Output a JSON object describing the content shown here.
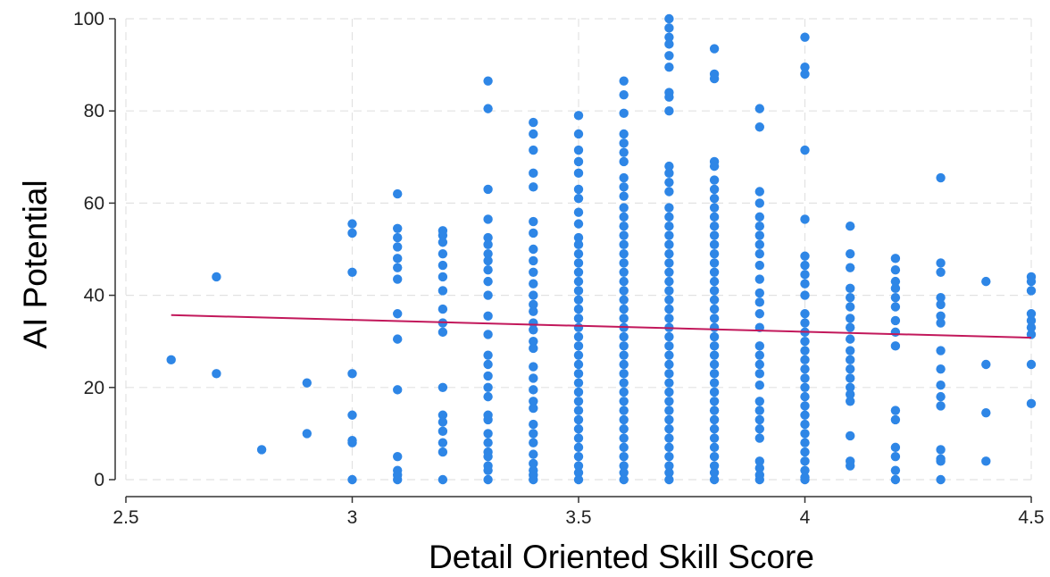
{
  "chart_data": {
    "type": "scatter",
    "title": "",
    "xlabel": "Detail Oriented Skill Score",
    "ylabel": "AI Potential",
    "xlim": [
      2.5,
      4.5
    ],
    "ylim": [
      0,
      100
    ],
    "xticks": [
      "2.5",
      "3",
      "3.5",
      "4",
      "4.5"
    ],
    "yticks": [
      "0",
      "20",
      "40",
      "60",
      "80",
      "100"
    ],
    "grid": true,
    "colors": {
      "points": "#2e86e6",
      "fit_line": "#c2185b",
      "grid": "#e2e2e2",
      "axis": "#333333"
    },
    "points": [
      [
        2.6,
        26
      ],
      [
        2.7,
        44
      ],
      [
        2.7,
        23
      ],
      [
        2.8,
        6.5
      ],
      [
        2.9,
        21
      ],
      [
        2.9,
        10
      ],
      [
        3.0,
        55.5
      ],
      [
        3.0,
        53.5
      ],
      [
        3.0,
        45
      ],
      [
        3.0,
        23
      ],
      [
        3.0,
        14
      ],
      [
        3.0,
        8.5
      ],
      [
        3.0,
        8
      ],
      [
        3.0,
        0
      ],
      [
        3.1,
        62
      ],
      [
        3.1,
        54.5
      ],
      [
        3.1,
        52.5
      ],
      [
        3.1,
        50.5
      ],
      [
        3.1,
        48
      ],
      [
        3.1,
        46
      ],
      [
        3.1,
        43.5
      ],
      [
        3.1,
        36
      ],
      [
        3.1,
        30.5
      ],
      [
        3.1,
        19.5
      ],
      [
        3.1,
        5
      ],
      [
        3.1,
        2
      ],
      [
        3.1,
        1
      ],
      [
        3.1,
        0
      ],
      [
        3.2,
        54
      ],
      [
        3.2,
        53
      ],
      [
        3.2,
        51.5
      ],
      [
        3.2,
        49
      ],
      [
        3.2,
        46.5
      ],
      [
        3.2,
        44
      ],
      [
        3.2,
        41
      ],
      [
        3.2,
        37
      ],
      [
        3.2,
        34
      ],
      [
        3.2,
        32
      ],
      [
        3.2,
        20
      ],
      [
        3.2,
        14
      ],
      [
        3.2,
        12.5
      ],
      [
        3.2,
        10.5
      ],
      [
        3.2,
        8
      ],
      [
        3.2,
        6
      ],
      [
        3.2,
        0
      ],
      [
        3.3,
        86.5
      ],
      [
        3.3,
        80.5
      ],
      [
        3.3,
        63
      ],
      [
        3.3,
        56.5
      ],
      [
        3.3,
        52.5
      ],
      [
        3.3,
        51
      ],
      [
        3.3,
        49
      ],
      [
        3.3,
        47.5
      ],
      [
        3.3,
        45.5
      ],
      [
        3.3,
        43
      ],
      [
        3.3,
        40
      ],
      [
        3.3,
        35.5
      ],
      [
        3.3,
        31.5
      ],
      [
        3.3,
        27
      ],
      [
        3.3,
        25
      ],
      [
        3.3,
        22.5
      ],
      [
        3.3,
        20
      ],
      [
        3.3,
        18
      ],
      [
        3.3,
        14
      ],
      [
        3.3,
        13
      ],
      [
        3.3,
        10
      ],
      [
        3.3,
        8
      ],
      [
        3.3,
        6
      ],
      [
        3.3,
        5
      ],
      [
        3.3,
        3
      ],
      [
        3.3,
        2
      ],
      [
        3.3,
        0
      ],
      [
        3.4,
        77.5
      ],
      [
        3.4,
        75
      ],
      [
        3.4,
        71.5
      ],
      [
        3.4,
        66.5
      ],
      [
        3.4,
        63.5
      ],
      [
        3.4,
        56
      ],
      [
        3.4,
        53.5
      ],
      [
        3.4,
        50
      ],
      [
        3.4,
        47.5
      ],
      [
        3.4,
        45
      ],
      [
        3.4,
        42.5
      ],
      [
        3.4,
        40
      ],
      [
        3.4,
        38
      ],
      [
        3.4,
        36.5
      ],
      [
        3.4,
        34
      ],
      [
        3.4,
        32.5
      ],
      [
        3.4,
        30
      ],
      [
        3.4,
        28.5
      ],
      [
        3.4,
        24.5
      ],
      [
        3.4,
        22
      ],
      [
        3.4,
        19.5
      ],
      [
        3.4,
        17
      ],
      [
        3.4,
        15.5
      ],
      [
        3.4,
        12
      ],
      [
        3.4,
        10
      ],
      [
        3.4,
        8
      ],
      [
        3.4,
        5.5
      ],
      [
        3.4,
        3.5
      ],
      [
        3.4,
        2
      ],
      [
        3.4,
        1
      ],
      [
        3.4,
        0
      ],
      [
        3.5,
        79
      ],
      [
        3.5,
        75
      ],
      [
        3.5,
        71.5
      ],
      [
        3.5,
        69
      ],
      [
        3.5,
        66.5
      ],
      [
        3.5,
        63
      ],
      [
        3.5,
        61
      ],
      [
        3.5,
        58
      ],
      [
        3.5,
        55.5
      ],
      [
        3.5,
        52.5
      ],
      [
        3.5,
        51
      ],
      [
        3.5,
        49
      ],
      [
        3.5,
        47
      ],
      [
        3.5,
        45
      ],
      [
        3.5,
        43
      ],
      [
        3.5,
        41
      ],
      [
        3.5,
        39
      ],
      [
        3.5,
        37
      ],
      [
        3.5,
        35
      ],
      [
        3.5,
        33
      ],
      [
        3.5,
        31
      ],
      [
        3.5,
        29
      ],
      [
        3.5,
        27
      ],
      [
        3.5,
        25
      ],
      [
        3.5,
        23
      ],
      [
        3.5,
        21
      ],
      [
        3.5,
        19
      ],
      [
        3.5,
        17
      ],
      [
        3.5,
        15
      ],
      [
        3.5,
        13
      ],
      [
        3.5,
        11
      ],
      [
        3.5,
        9
      ],
      [
        3.5,
        7
      ],
      [
        3.5,
        5
      ],
      [
        3.5,
        3
      ],
      [
        3.5,
        1.5
      ],
      [
        3.5,
        0
      ],
      [
        3.6,
        86.5
      ],
      [
        3.6,
        83.5
      ],
      [
        3.6,
        79.5
      ],
      [
        3.6,
        75
      ],
      [
        3.6,
        73
      ],
      [
        3.6,
        71
      ],
      [
        3.6,
        69
      ],
      [
        3.6,
        65.5
      ],
      [
        3.6,
        63.5
      ],
      [
        3.6,
        61.5
      ],
      [
        3.6,
        59
      ],
      [
        3.6,
        57
      ],
      [
        3.6,
        55
      ],
      [
        3.6,
        53
      ],
      [
        3.6,
        51
      ],
      [
        3.6,
        49
      ],
      [
        3.6,
        47
      ],
      [
        3.6,
        45
      ],
      [
        3.6,
        43
      ],
      [
        3.6,
        41
      ],
      [
        3.6,
        39
      ],
      [
        3.6,
        37
      ],
      [
        3.6,
        35
      ],
      [
        3.6,
        33
      ],
      [
        3.6,
        31
      ],
      [
        3.6,
        29
      ],
      [
        3.6,
        27
      ],
      [
        3.6,
        25
      ],
      [
        3.6,
        23
      ],
      [
        3.6,
        21
      ],
      [
        3.6,
        19
      ],
      [
        3.6,
        17
      ],
      [
        3.6,
        15
      ],
      [
        3.6,
        13
      ],
      [
        3.6,
        11
      ],
      [
        3.6,
        9
      ],
      [
        3.6,
        7
      ],
      [
        3.6,
        5
      ],
      [
        3.6,
        3
      ],
      [
        3.6,
        1.5
      ],
      [
        3.6,
        0
      ],
      [
        3.7,
        100
      ],
      [
        3.7,
        98
      ],
      [
        3.7,
        96
      ],
      [
        3.7,
        94.5
      ],
      [
        3.7,
        92
      ],
      [
        3.7,
        89.5
      ],
      [
        3.7,
        84
      ],
      [
        3.7,
        83
      ],
      [
        3.7,
        80
      ],
      [
        3.7,
        68
      ],
      [
        3.7,
        66.5
      ],
      [
        3.7,
        64.5
      ],
      [
        3.7,
        62.5
      ],
      [
        3.7,
        59
      ],
      [
        3.7,
        57
      ],
      [
        3.7,
        55
      ],
      [
        3.7,
        53
      ],
      [
        3.7,
        51
      ],
      [
        3.7,
        49
      ],
      [
        3.7,
        47
      ],
      [
        3.7,
        45
      ],
      [
        3.7,
        43
      ],
      [
        3.7,
        41
      ],
      [
        3.7,
        39
      ],
      [
        3.7,
        37
      ],
      [
        3.7,
        35
      ],
      [
        3.7,
        33
      ],
      [
        3.7,
        31
      ],
      [
        3.7,
        29
      ],
      [
        3.7,
        27
      ],
      [
        3.7,
        25
      ],
      [
        3.7,
        23
      ],
      [
        3.7,
        21
      ],
      [
        3.7,
        19
      ],
      [
        3.7,
        17
      ],
      [
        3.7,
        15
      ],
      [
        3.7,
        13
      ],
      [
        3.7,
        11
      ],
      [
        3.7,
        9
      ],
      [
        3.7,
        7
      ],
      [
        3.7,
        5
      ],
      [
        3.7,
        3
      ],
      [
        3.7,
        1.5
      ],
      [
        3.7,
        0
      ],
      [
        3.8,
        93.5
      ],
      [
        3.8,
        88
      ],
      [
        3.8,
        87
      ],
      [
        3.8,
        69
      ],
      [
        3.8,
        68
      ],
      [
        3.8,
        65
      ],
      [
        3.8,
        63
      ],
      [
        3.8,
        61
      ],
      [
        3.8,
        59
      ],
      [
        3.8,
        57
      ],
      [
        3.8,
        55
      ],
      [
        3.8,
        53
      ],
      [
        3.8,
        51
      ],
      [
        3.8,
        49
      ],
      [
        3.8,
        47
      ],
      [
        3.8,
        45
      ],
      [
        3.8,
        43
      ],
      [
        3.8,
        41
      ],
      [
        3.8,
        39
      ],
      [
        3.8,
        37
      ],
      [
        3.8,
        35
      ],
      [
        3.8,
        33
      ],
      [
        3.8,
        31
      ],
      [
        3.8,
        29
      ],
      [
        3.8,
        27
      ],
      [
        3.8,
        25
      ],
      [
        3.8,
        23
      ],
      [
        3.8,
        21
      ],
      [
        3.8,
        19
      ],
      [
        3.8,
        17
      ],
      [
        3.8,
        15
      ],
      [
        3.8,
        13
      ],
      [
        3.8,
        11
      ],
      [
        3.8,
        9
      ],
      [
        3.8,
        7
      ],
      [
        3.8,
        5
      ],
      [
        3.8,
        3
      ],
      [
        3.8,
        1.5
      ],
      [
        3.8,
        0
      ],
      [
        3.9,
        80.5
      ],
      [
        3.9,
        76.5
      ],
      [
        3.9,
        62.5
      ],
      [
        3.9,
        60
      ],
      [
        3.9,
        57
      ],
      [
        3.9,
        55
      ],
      [
        3.9,
        53
      ],
      [
        3.9,
        51
      ],
      [
        3.9,
        49
      ],
      [
        3.9,
        46.5
      ],
      [
        3.9,
        43.5
      ],
      [
        3.9,
        40.5
      ],
      [
        3.9,
        38.5
      ],
      [
        3.9,
        36
      ],
      [
        3.9,
        33
      ],
      [
        3.9,
        29
      ],
      [
        3.9,
        27
      ],
      [
        3.9,
        25
      ],
      [
        3.9,
        23
      ],
      [
        3.9,
        20.5
      ],
      [
        3.9,
        17
      ],
      [
        3.9,
        15
      ],
      [
        3.9,
        13
      ],
      [
        3.9,
        11
      ],
      [
        3.9,
        9
      ],
      [
        3.9,
        4
      ],
      [
        3.9,
        2.5
      ],
      [
        3.9,
        1
      ],
      [
        3.9,
        0
      ],
      [
        4.0,
        96
      ],
      [
        4.0,
        89.5
      ],
      [
        4.0,
        88
      ],
      [
        4.0,
        71.5
      ],
      [
        4.0,
        56.5
      ],
      [
        4.0,
        48.5
      ],
      [
        4.0,
        46.5
      ],
      [
        4.0,
        44.5
      ],
      [
        4.0,
        42.5
      ],
      [
        4.0,
        40
      ],
      [
        4.0,
        36
      ],
      [
        4.0,
        34
      ],
      [
        4.0,
        32
      ],
      [
        4.0,
        30
      ],
      [
        4.0,
        28
      ],
      [
        4.0,
        26
      ],
      [
        4.0,
        24
      ],
      [
        4.0,
        22
      ],
      [
        4.0,
        20
      ],
      [
        4.0,
        18
      ],
      [
        4.0,
        16
      ],
      [
        4.0,
        14
      ],
      [
        4.0,
        12
      ],
      [
        4.0,
        10
      ],
      [
        4.0,
        8
      ],
      [
        4.0,
        6
      ],
      [
        4.0,
        4
      ],
      [
        4.0,
        2
      ],
      [
        4.0,
        0.5
      ],
      [
        4.0,
        0
      ],
      [
        4.1,
        55
      ],
      [
        4.1,
        49
      ],
      [
        4.1,
        46
      ],
      [
        4.1,
        41.5
      ],
      [
        4.1,
        39.5
      ],
      [
        4.1,
        37.5
      ],
      [
        4.1,
        35
      ],
      [
        4.1,
        33
      ],
      [
        4.1,
        30.5
      ],
      [
        4.1,
        28
      ],
      [
        4.1,
        26
      ],
      [
        4.1,
        24
      ],
      [
        4.1,
        22
      ],
      [
        4.1,
        20
      ],
      [
        4.1,
        18.5
      ],
      [
        4.1,
        17
      ],
      [
        4.1,
        9.5
      ],
      [
        4.1,
        4
      ],
      [
        4.1,
        3
      ],
      [
        4.2,
        48
      ],
      [
        4.2,
        45.5
      ],
      [
        4.2,
        43
      ],
      [
        4.2,
        41.5
      ],
      [
        4.2,
        39.5
      ],
      [
        4.2,
        37.5
      ],
      [
        4.2,
        34.5
      ],
      [
        4.2,
        32
      ],
      [
        4.2,
        29
      ],
      [
        4.2,
        15
      ],
      [
        4.2,
        13
      ],
      [
        4.2,
        7
      ],
      [
        4.2,
        5
      ],
      [
        4.2,
        2
      ],
      [
        4.2,
        0
      ],
      [
        4.3,
        65.5
      ],
      [
        4.3,
        47
      ],
      [
        4.3,
        45
      ],
      [
        4.3,
        39.5
      ],
      [
        4.3,
        38
      ],
      [
        4.3,
        35.5
      ],
      [
        4.3,
        34
      ],
      [
        4.3,
        28
      ],
      [
        4.3,
        24
      ],
      [
        4.3,
        20.5
      ],
      [
        4.3,
        18
      ],
      [
        4.3,
        16
      ],
      [
        4.3,
        6.5
      ],
      [
        4.3,
        4.5
      ],
      [
        4.3,
        4
      ],
      [
        4.3,
        0
      ],
      [
        4.4,
        43
      ],
      [
        4.4,
        25
      ],
      [
        4.4,
        14.5
      ],
      [
        4.4,
        4
      ],
      [
        4.5,
        44
      ],
      [
        4.5,
        43
      ],
      [
        4.5,
        41
      ],
      [
        4.5,
        36
      ],
      [
        4.5,
        34.5
      ],
      [
        4.5,
        33
      ],
      [
        4.5,
        31.5
      ],
      [
        4.5,
        25
      ],
      [
        4.5,
        16.5
      ]
    ],
    "fit_line": {
      "x": [
        2.6,
        4.5
      ],
      "y": [
        35.7,
        30.8
      ]
    }
  }
}
